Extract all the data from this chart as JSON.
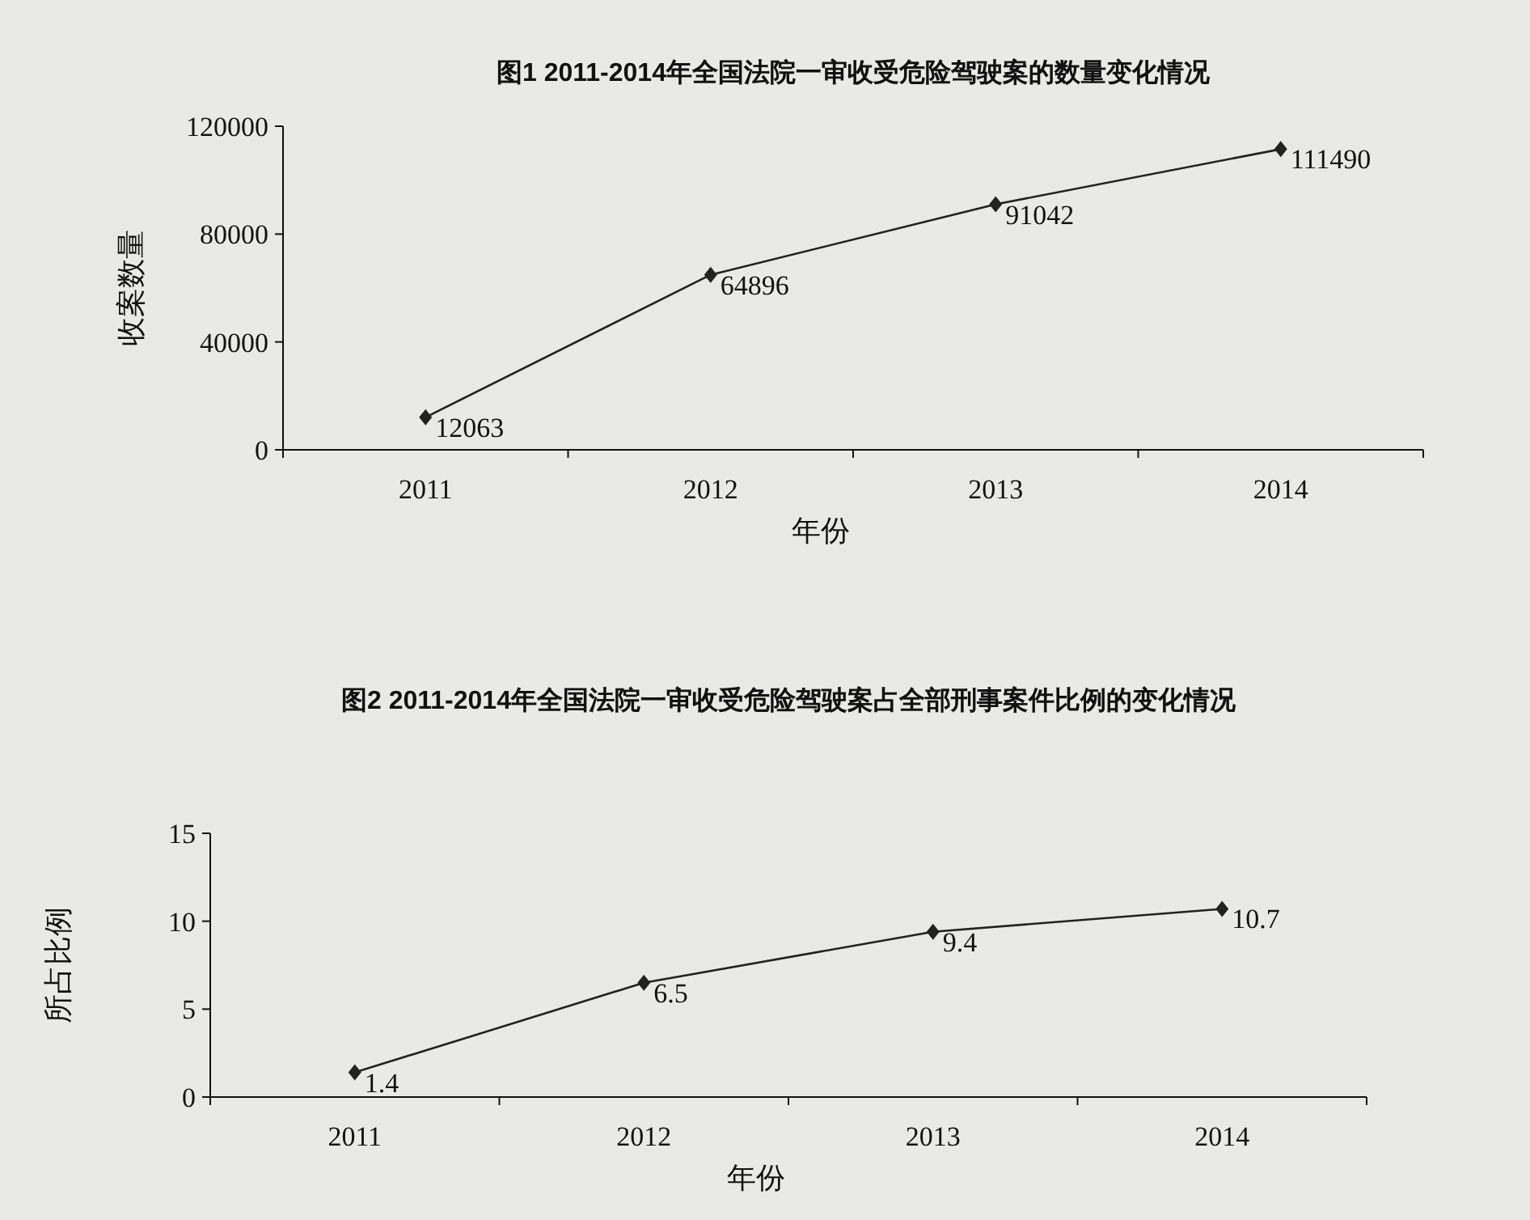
{
  "chart_data": [
    {
      "type": "line",
      "title": "图1 2011-2014年全国法院一审收受危险驾驶案的数量变化情况",
      "xlabel": "年份",
      "ylabel": "收案数量",
      "categories": [
        "2011",
        "2012",
        "2013",
        "2014"
      ],
      "series": [
        {
          "color": "#222222",
          "values": [
            12063,
            64896,
            91042,
            111490
          ]
        }
      ],
      "ylim": [
        0,
        120000
      ],
      "yticks": [
        0,
        40000,
        80000,
        120000
      ],
      "marker": "diamond",
      "data_labels": true
    },
    {
      "type": "line",
      "title": "图2 2011-2014年全国法院一审收受危险驾驶案占全部刑事案件比例的变化情况",
      "xlabel": "年份",
      "ylabel": "所占比例",
      "categories": [
        "2011",
        "2012",
        "2013",
        "2014"
      ],
      "series": [
        {
          "color": "#222222",
          "values": [
            1.4,
            6.5,
            9.4,
            10.7
          ]
        }
      ],
      "ylim": [
        0,
        15
      ],
      "yticks": [
        0,
        5,
        10,
        15
      ],
      "marker": "diamond",
      "data_labels": true
    }
  ]
}
